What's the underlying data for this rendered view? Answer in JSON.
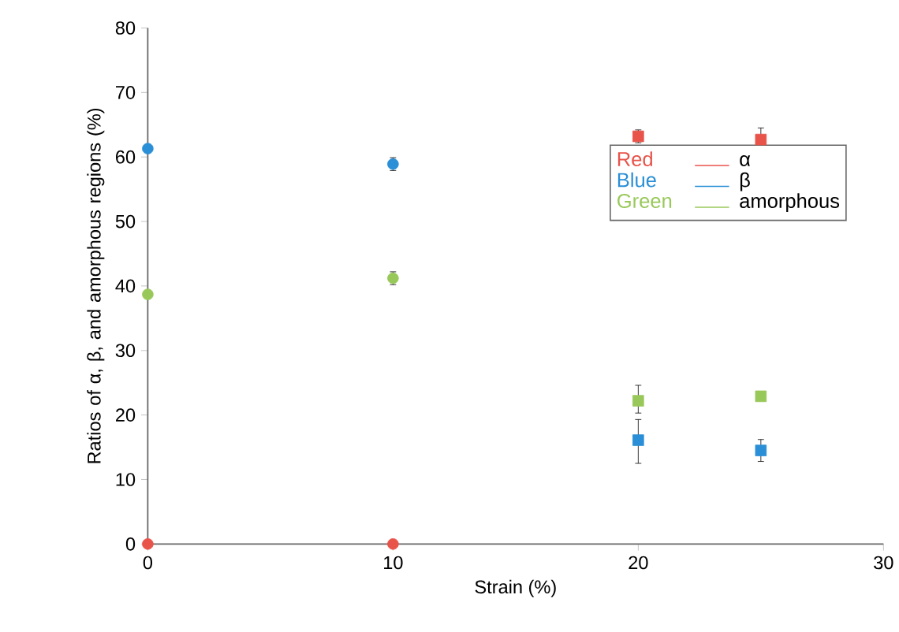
{
  "chart_data": {
    "type": "scatter",
    "xlabel": "Strain (%)",
    "ylabel": "Ratios of α, β, and amorphous regions (%)",
    "xlim": [
      0,
      30
    ],
    "xticks": [
      0,
      10,
      20,
      30
    ],
    "ylim": [
      0,
      80
    ],
    "yticks": [
      0,
      10,
      20,
      30,
      40,
      50,
      60,
      70,
      80
    ],
    "grid": false,
    "legend": "right",
    "annotations": [
      "Red",
      "Blue",
      "Green"
    ],
    "series": [
      {
        "name": "α",
        "color": "#e8534a",
        "marker": "circle",
        "x": [
          0,
          10
        ],
        "values": [
          0,
          0
        ],
        "errors": [
          null,
          null
        ]
      },
      {
        "color": "#e8534a",
        "marker": "square",
        "x": [
          20,
          25
        ],
        "values": [
          63.2,
          62.7
        ],
        "errors": [
          1,
          1.8
        ]
      },
      {
        "name": "β",
        "color": "#2a8fd6",
        "marker": "circle",
        "x": [
          0,
          10
        ],
        "values": [
          61.3,
          58.9
        ],
        "errors": [
          null,
          1
        ]
      },
      {
        "color": "#2a8fd6",
        "marker": "square",
        "x": [
          20,
          25
        ],
        "values": [
          16.1,
          14.5
        ],
        "errors": [
          [
            12.5,
            19.3
          ],
          1.7
        ]
      },
      {
        "name": "amorphous",
        "color": "#99c85a",
        "marker": "circle",
        "x": [
          0,
          10
        ],
        "values": [
          38.7,
          41.2
        ],
        "errors": [
          null,
          1
        ]
      },
      {
        "color": "#99c85a",
        "marker": "square",
        "x": [
          20,
          25
        ],
        "values": [
          22.2,
          22.9
        ],
        "errors": [
          [
            20.3,
            24.6
          ],
          null
        ]
      }
    ]
  }
}
